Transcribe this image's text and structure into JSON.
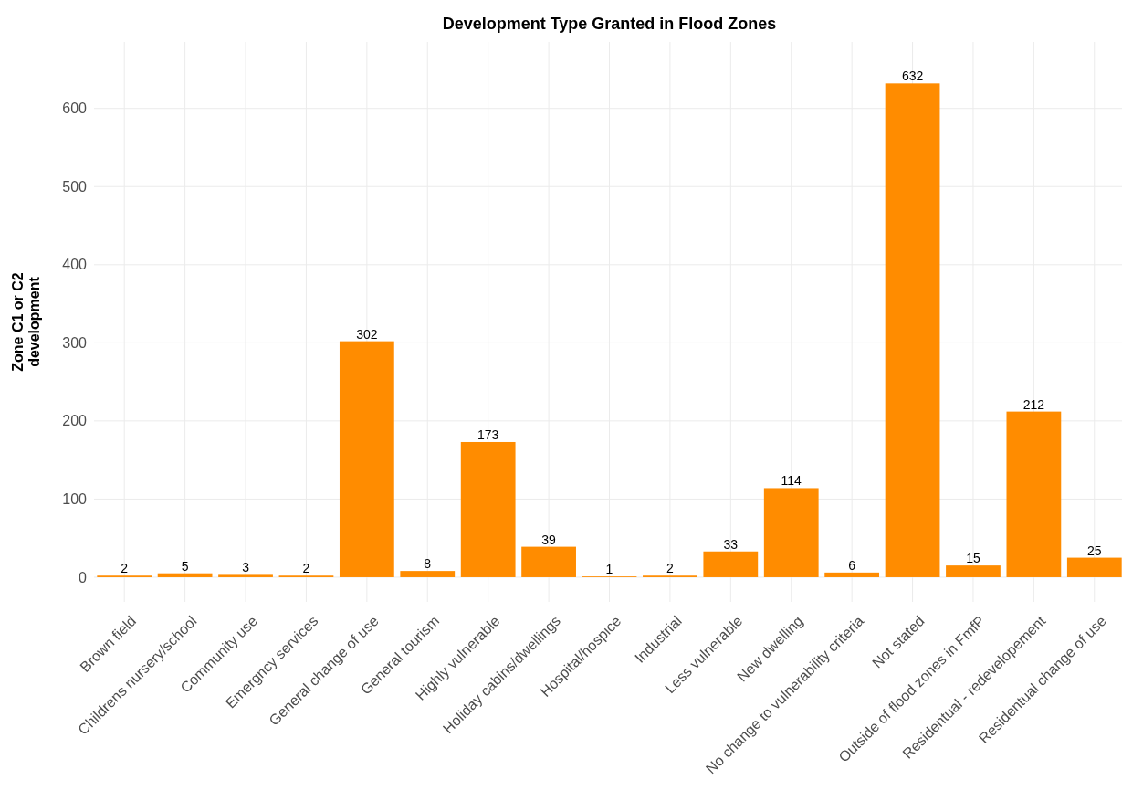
{
  "chart_data": {
    "type": "bar",
    "title": "Development Type Granted in Flood Zones",
    "ylabel": "Zone C1 or C2\ndevelopment",
    "categories": [
      "Brown field",
      "Childrens nursery/school",
      "Community use",
      "Emergncy services",
      "General change of use",
      "General tourism",
      "Highly vulnerable",
      "Holiday cabins/dwellings",
      "Hospital/hospice",
      "Industrial",
      "Less vulnerable",
      "New dwelling",
      "No change to vulnerability criteria",
      "Not stated",
      "Outside of flood zones in FmfP",
      "Residentual - redevelopement",
      "Residentual change of use"
    ],
    "values": [
      2,
      5,
      3,
      2,
      302,
      8,
      173,
      39,
      1,
      2,
      33,
      114,
      6,
      632,
      15,
      212,
      25
    ],
    "color": "#ff8c00",
    "ylim": [
      -31.6,
      685
    ],
    "yticks": [
      0,
      100,
      200,
      300,
      400,
      500,
      600
    ],
    "grid": true,
    "data_labels": true
  }
}
